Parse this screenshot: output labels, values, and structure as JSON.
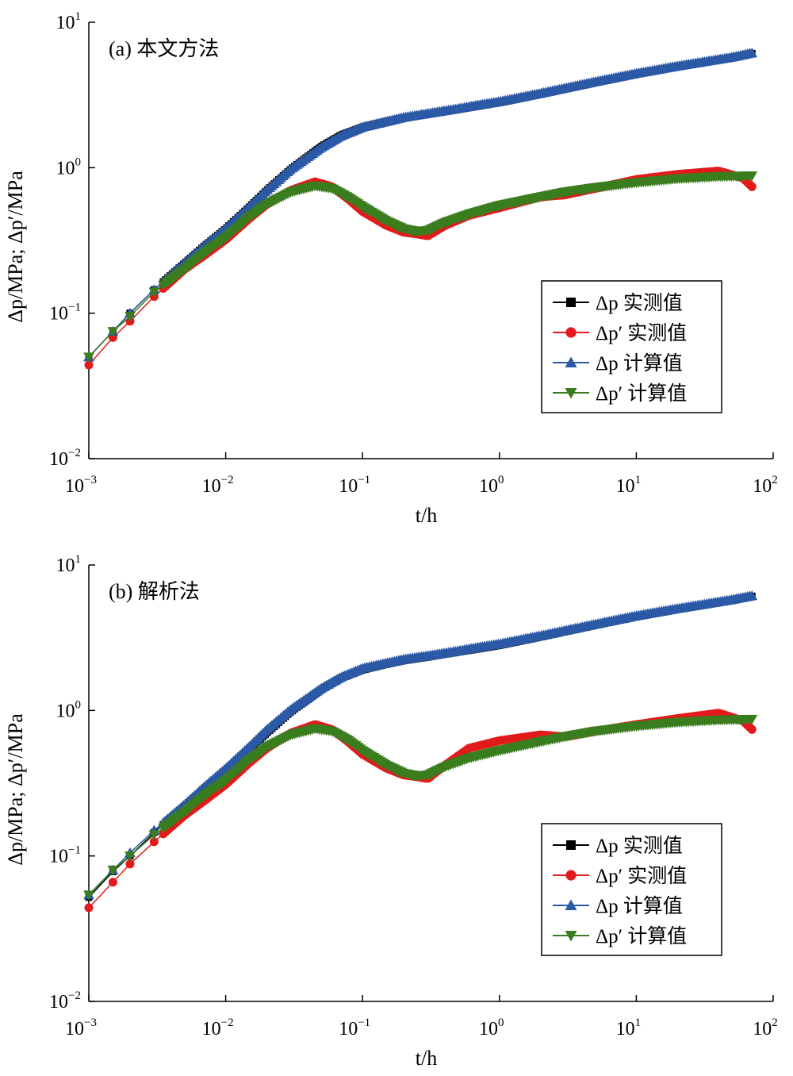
{
  "chart_data": [
    {
      "type": "line",
      "title": "",
      "panel_label": "(a) 本文方法",
      "xlabel": "t/h",
      "ylabel": "Δp/MPa; Δp′/MPa",
      "xscale": "log",
      "yscale": "log",
      "xlim": [
        0.001,
        100
      ],
      "ylim": [
        0.01,
        10
      ],
      "x_ticks": [
        {
          "base": "10",
          "exp": "−3"
        },
        {
          "base": "10",
          "exp": "−2"
        },
        {
          "base": "10",
          "exp": "−1"
        },
        {
          "base": "10",
          "exp": "0"
        },
        {
          "base": "10",
          "exp": "1"
        },
        {
          "base": "10",
          "exp": "2"
        }
      ],
      "y_ticks": [
        {
          "base": "10",
          "exp": "−2"
        },
        {
          "base": "10",
          "exp": "−1"
        },
        {
          "base": "10",
          "exp": "0"
        },
        {
          "base": "10",
          "exp": "1"
        }
      ],
      "grid": false,
      "legend_position": "bottom-right",
      "series": [
        {
          "name": "Δp 实测值",
          "color": "#000000",
          "marker": "square",
          "x": [
            0.001,
            0.0015,
            0.002,
            0.003,
            0.005,
            0.007,
            0.01,
            0.015,
            0.02,
            0.03,
            0.05,
            0.07,
            0.1,
            0.15,
            0.2,
            0.3,
            0.5,
            0.7,
            1,
            2,
            5,
            10,
            20,
            50,
            70
          ],
          "y": [
            0.05,
            0.075,
            0.1,
            0.145,
            0.22,
            0.29,
            0.38,
            0.54,
            0.7,
            0.98,
            1.4,
            1.68,
            1.9,
            2.08,
            2.2,
            2.33,
            2.52,
            2.65,
            2.8,
            3.2,
            3.85,
            4.4,
            4.95,
            5.7,
            6.1
          ]
        },
        {
          "name": "Δp′ 实测值",
          "color": "#e31a1c",
          "marker": "circle",
          "x": [
            0.001,
            0.0015,
            0.002,
            0.003,
            0.005,
            0.007,
            0.01,
            0.015,
            0.02,
            0.03,
            0.045,
            0.06,
            0.08,
            0.1,
            0.15,
            0.2,
            0.25,
            0.3,
            0.4,
            0.6,
            1,
            2,
            3,
            5,
            10,
            20,
            40,
            60,
            70
          ],
          "y": [
            0.044,
            0.068,
            0.088,
            0.13,
            0.2,
            0.25,
            0.32,
            0.45,
            0.56,
            0.7,
            0.8,
            0.74,
            0.6,
            0.5,
            0.4,
            0.36,
            0.35,
            0.34,
            0.4,
            0.47,
            0.53,
            0.63,
            0.65,
            0.72,
            0.83,
            0.9,
            0.95,
            0.85,
            0.74
          ]
        },
        {
          "name": "Δp 计算值",
          "color": "#2b59a6",
          "marker": "triangle-up",
          "x": [
            0.001,
            0.0015,
            0.002,
            0.003,
            0.005,
            0.007,
            0.01,
            0.015,
            0.02,
            0.03,
            0.05,
            0.07,
            0.1,
            0.15,
            0.2,
            0.3,
            0.5,
            0.7,
            1,
            2,
            5,
            10,
            20,
            50,
            70
          ],
          "y": [
            0.05,
            0.075,
            0.1,
            0.145,
            0.22,
            0.29,
            0.38,
            0.54,
            0.7,
            0.98,
            1.38,
            1.66,
            1.9,
            2.08,
            2.22,
            2.36,
            2.55,
            2.7,
            2.85,
            3.25,
            3.9,
            4.45,
            5.0,
            5.75,
            6.15
          ]
        },
        {
          "name": "Δp′ 计算值",
          "color": "#3a7d1e",
          "marker": "triangle-down",
          "x": [
            0.001,
            0.0015,
            0.002,
            0.003,
            0.005,
            0.007,
            0.01,
            0.015,
            0.02,
            0.03,
            0.045,
            0.06,
            0.08,
            0.1,
            0.15,
            0.2,
            0.25,
            0.3,
            0.4,
            0.6,
            1,
            2,
            3,
            5,
            10,
            20,
            40,
            70
          ],
          "y": [
            0.05,
            0.075,
            0.095,
            0.14,
            0.2,
            0.26,
            0.33,
            0.46,
            0.56,
            0.68,
            0.75,
            0.72,
            0.62,
            0.54,
            0.43,
            0.38,
            0.365,
            0.37,
            0.42,
            0.48,
            0.55,
            0.63,
            0.68,
            0.73,
            0.79,
            0.84,
            0.87,
            0.88
          ]
        }
      ]
    },
    {
      "type": "line",
      "title": "",
      "panel_label": "(b) 解析法",
      "xlabel": "t/h",
      "ylabel": "Δp/MPa; Δp′/MPa",
      "xscale": "log",
      "yscale": "log",
      "xlim": [
        0.001,
        100
      ],
      "ylim": [
        0.01,
        10
      ],
      "x_ticks": [
        {
          "base": "10",
          "exp": "−3"
        },
        {
          "base": "10",
          "exp": "−2"
        },
        {
          "base": "10",
          "exp": "−1"
        },
        {
          "base": "10",
          "exp": "0"
        },
        {
          "base": "10",
          "exp": "1"
        },
        {
          "base": "10",
          "exp": "2"
        }
      ],
      "y_ticks": [
        {
          "base": "10",
          "exp": "−2"
        },
        {
          "base": "10",
          "exp": "−1"
        },
        {
          "base": "10",
          "exp": "0"
        },
        {
          "base": "10",
          "exp": "1"
        }
      ],
      "grid": false,
      "legend_position": "bottom-right",
      "series": [
        {
          "name": "Δp 实测值",
          "color": "#000000",
          "marker": "square",
          "x": [
            0.001,
            0.0015,
            0.002,
            0.003,
            0.005,
            0.007,
            0.01,
            0.015,
            0.02,
            0.03,
            0.05,
            0.07,
            0.1,
            0.15,
            0.2,
            0.3,
            0.5,
            0.7,
            1,
            2,
            5,
            10,
            20,
            50,
            70
          ],
          "y": [
            0.052,
            0.078,
            0.1,
            0.145,
            0.22,
            0.29,
            0.38,
            0.54,
            0.7,
            0.98,
            1.4,
            1.68,
            1.9,
            2.08,
            2.2,
            2.33,
            2.52,
            2.65,
            2.8,
            3.2,
            3.85,
            4.4,
            4.95,
            5.7,
            6.1
          ]
        },
        {
          "name": "Δp′ 实测值",
          "color": "#e31a1c",
          "marker": "circle",
          "x": [
            0.001,
            0.0015,
            0.002,
            0.003,
            0.005,
            0.007,
            0.01,
            0.015,
            0.02,
            0.03,
            0.045,
            0.06,
            0.08,
            0.1,
            0.15,
            0.2,
            0.25,
            0.3,
            0.4,
            0.6,
            1,
            2,
            3,
            5,
            10,
            20,
            40,
            60,
            70
          ],
          "y": [
            0.044,
            0.066,
            0.088,
            0.125,
            0.19,
            0.24,
            0.31,
            0.44,
            0.55,
            0.7,
            0.8,
            0.74,
            0.6,
            0.5,
            0.4,
            0.36,
            0.35,
            0.34,
            0.42,
            0.55,
            0.62,
            0.68,
            0.66,
            0.72,
            0.8,
            0.88,
            0.96,
            0.85,
            0.74
          ]
        },
        {
          "name": "Δp 计算值",
          "color": "#2b59a6",
          "marker": "triangle-up",
          "x": [
            0.001,
            0.0015,
            0.002,
            0.003,
            0.005,
            0.007,
            0.01,
            0.015,
            0.02,
            0.03,
            0.05,
            0.07,
            0.1,
            0.15,
            0.2,
            0.3,
            0.5,
            0.7,
            1,
            2,
            5,
            10,
            20,
            50,
            70
          ],
          "y": [
            0.054,
            0.08,
            0.105,
            0.15,
            0.225,
            0.3,
            0.4,
            0.57,
            0.74,
            1.02,
            1.42,
            1.7,
            1.95,
            2.12,
            2.25,
            2.38,
            2.57,
            2.72,
            2.87,
            3.27,
            3.92,
            4.48,
            5.02,
            5.78,
            6.15
          ]
        },
        {
          "name": "Δp′ 计算值",
          "color": "#3a7d1e",
          "marker": "triangle-down",
          "x": [
            0.001,
            0.0015,
            0.002,
            0.003,
            0.005,
            0.007,
            0.01,
            0.015,
            0.02,
            0.03,
            0.045,
            0.06,
            0.08,
            0.1,
            0.15,
            0.2,
            0.25,
            0.3,
            0.4,
            0.6,
            1,
            2,
            3,
            5,
            10,
            20,
            40,
            70
          ],
          "y": [
            0.054,
            0.08,
            0.1,
            0.14,
            0.2,
            0.26,
            0.33,
            0.46,
            0.56,
            0.68,
            0.75,
            0.72,
            0.62,
            0.53,
            0.42,
            0.37,
            0.355,
            0.36,
            0.41,
            0.47,
            0.53,
            0.61,
            0.66,
            0.72,
            0.78,
            0.83,
            0.86,
            0.87
          ]
        }
      ]
    }
  ]
}
